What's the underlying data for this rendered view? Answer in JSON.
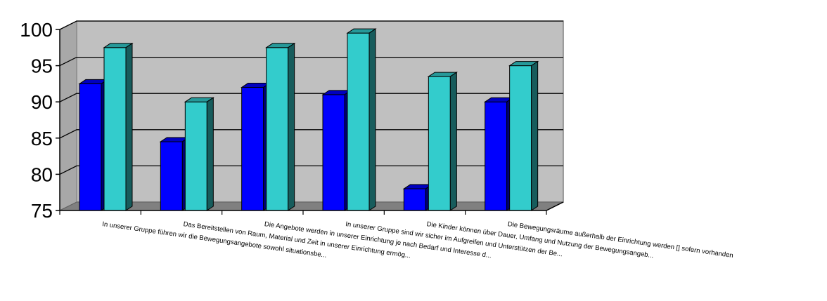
{
  "chart_data": {
    "type": "bar",
    "categories": [
      "In unserer Gruppe führen wir die Bewegungsangebote sowohl situationsbe...",
      "Das Bereitstellen von Raum, Material und Zeit in unserer Einrichtung ermög...",
      "Die Angebote werden in unserer Einrichtung je nach Bedarf und Interesse d...",
      "In unserer Gruppe sind wir sicher im Aufgreifen und Unterstützen der Be...",
      "Die Kinder können über Dauer, Umfang und Nutzung der Bewegungsangeb...",
      "Die Bewegungsräume außerhalb der Einrichtung werden [] sofern vorhanden"
    ],
    "series": [
      {
        "values": [
          92.5,
          84.5,
          92,
          91,
          78,
          90
        ],
        "color": "#0000ff"
      },
      {
        "values": [
          97.5,
          90,
          97.5,
          99.5,
          93.5,
          95
        ],
        "color": "#33cccc"
      }
    ],
    "ylim": [
      75,
      100
    ],
    "yticks": [
      75,
      80,
      85,
      90,
      95,
      100
    ],
    "title": "",
    "xlabel": "",
    "ylabel": "",
    "grid": true,
    "legend": "none",
    "colors": {
      "wall": "#c0c0c0",
      "floor": "#808080",
      "gridline": "#000000"
    }
  }
}
